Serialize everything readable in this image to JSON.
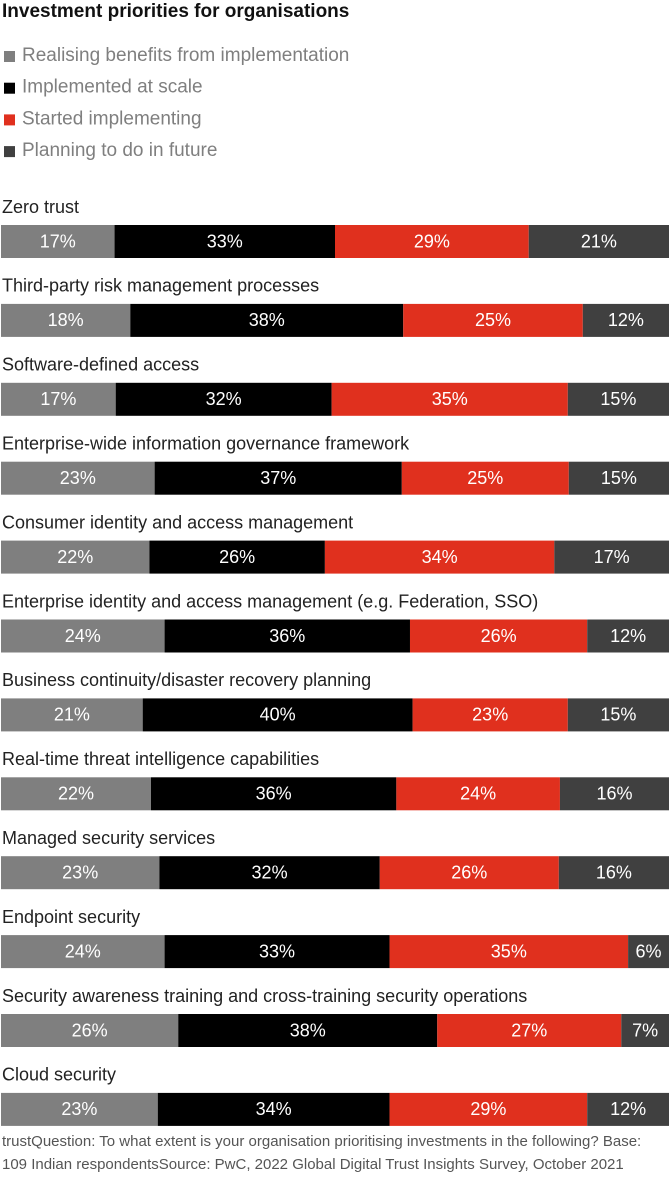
{
  "chart_data": {
    "type": "stacked_bar_horizontal",
    "title": "Investment priorities for organisations",
    "categories": [
      "Zero trust",
      "Third-party risk management processes",
      "Software-defined access",
      "Enterprise-wide information governance framework",
      "Consumer identity and access management",
      "Enterprise identity and access management (e.g. Federation, SSO)",
      "Business continuity/disaster recovery planning",
      "Real-time threat intelligence capabilities",
      "Managed security services",
      "Endpoint security",
      "Security awareness training and cross-training security operations",
      "Cloud security"
    ],
    "series": [
      {
        "name": "Realising benefits from implementation",
        "color": "#7f7f7f",
        "values": [
          17,
          18,
          17,
          23,
          22,
          24,
          21,
          22,
          23,
          24,
          26,
          23
        ],
        "value_labels": [
          "17%",
          "18%",
          "17%",
          "23%",
          "22%",
          "24%",
          "21%",
          "22%",
          "23%",
          "24%",
          "26%",
          "23%"
        ]
      },
      {
        "name": "Implemented at scale",
        "color": "#000000",
        "values": [
          33,
          38,
          32,
          37,
          26,
          36,
          40,
          36,
          32,
          33,
          38,
          34
        ],
        "value_labels": [
          "33%",
          "38%",
          "32%",
          "37%",
          "26%",
          "36%",
          "40%",
          "36%",
          "32%",
          "33%",
          "38%",
          "34%"
        ]
      },
      {
        "name": "Started implementing",
        "color": "#e0301e",
        "values": [
          29,
          25,
          35,
          25,
          34,
          26,
          23,
          24,
          26,
          35,
          27,
          29
        ],
        "value_labels": [
          "29%",
          "25%",
          "35%",
          "25%",
          "34%",
          "26%",
          "23%",
          "24%",
          "26%",
          "35%",
          "27%",
          "29%"
        ]
      },
      {
        "name": "Planning to do in future",
        "color": "#404040",
        "values": [
          21,
          12,
          15,
          15,
          17,
          12,
          15,
          16,
          16,
          6,
          7,
          12
        ],
        "value_labels": [
          "21%",
          "12%",
          "15%",
          "15%",
          "17%",
          "12%",
          "15%",
          "16%",
          "16%",
          "6%",
          "7%",
          "12%"
        ]
      }
    ],
    "source": "trustQuestion: To what extent is your organisation prioritising investments in the following? Base: 109 Indian respondentsSource: PwC, 2022 Global Digital Trust Insights Survey, October 2021"
  }
}
